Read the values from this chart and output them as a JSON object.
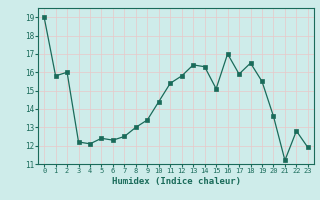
{
  "x": [
    0,
    1,
    2,
    3,
    4,
    5,
    6,
    7,
    8,
    9,
    10,
    11,
    12,
    13,
    14,
    15,
    16,
    17,
    18,
    19,
    20,
    21,
    22,
    23
  ],
  "y": [
    19,
    15.8,
    16.0,
    12.2,
    12.1,
    12.4,
    12.3,
    12.5,
    13.0,
    13.4,
    14.4,
    15.4,
    15.8,
    16.4,
    16.3,
    15.1,
    17.0,
    15.9,
    16.5,
    15.5,
    13.6,
    11.2,
    12.8,
    11.9
  ],
  "xlabel": "Humidex (Indice chaleur)",
  "line_color": "#1a6b5a",
  "marker_size": 2.5,
  "bg_color": "#ceecea",
  "grid_color_v": "#e8c8c8",
  "grid_color_h": "#e8c8c8",
  "xlim": [
    -0.5,
    23.5
  ],
  "ylim": [
    11,
    19.5
  ],
  "yticks": [
    11,
    12,
    13,
    14,
    15,
    16,
    17,
    18,
    19
  ],
  "xticks": [
    0,
    1,
    2,
    3,
    4,
    5,
    6,
    7,
    8,
    9,
    10,
    11,
    12,
    13,
    14,
    15,
    16,
    17,
    18,
    19,
    20,
    21,
    22,
    23
  ]
}
